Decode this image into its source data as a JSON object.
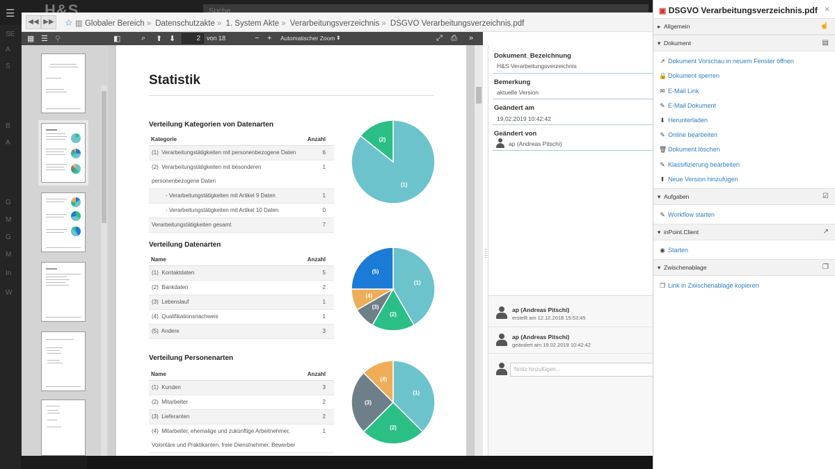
{
  "background": {
    "logo": "H&S",
    "search_placeholder": "Suche",
    "menu_icon": "☰",
    "side_labels": [
      "SE",
      "A",
      "S",
      "",
      "B",
      "A",
      "",
      "G",
      "M",
      "G",
      "M",
      "In",
      "W"
    ]
  },
  "viewer": {
    "breadcrumb": [
      "Globaler Bereich",
      "Datenschutzakte",
      "1. System Akte",
      "Verarbeitungsverzeichnis",
      "DSGVO Verarbeitungsverzeichnis.pdf"
    ],
    "toolbar": {
      "page_current": "2",
      "page_total_label": "von 18",
      "zoom_label": "Automatischer Zoom",
      "zoom_minus": "−",
      "zoom_plus": "+"
    }
  },
  "document": {
    "title": "Statistik",
    "sections": [
      {
        "heading": "Verteilung Kategorien von Datenarten",
        "col_name": "Kategorie",
        "col_count": "Anzahl",
        "rows": [
          {
            "idx": "(1)",
            "label": "Verarbeitungstätigkeiten mit personenbezogene Daten",
            "count": "6"
          },
          {
            "idx": "(2)",
            "label": "Verarbeitungstätigkeiten mit besonderen personenbezogene Daten",
            "count": "1"
          },
          {
            "idx": "",
            "label": "- Verarbeitungstätigkeiten mit Artikel 9 Daten",
            "count": "1"
          },
          {
            "idx": "",
            "label": "- Verarbeitungstätigkeiten mit Artikel 10 Daten",
            "count": "0"
          },
          {
            "idx": "",
            "label": "Verarbeitungstätigkeiten gesamt",
            "count": "7"
          }
        ]
      },
      {
        "heading": "Verteilung Datenarten",
        "col_name": "Name",
        "col_count": "Anzahl",
        "rows": [
          {
            "idx": "(1)",
            "label": "Kontaktdaten",
            "count": "5"
          },
          {
            "idx": "(2)",
            "label": "Bankdaten",
            "count": "2"
          },
          {
            "idx": "(3)",
            "label": "Lebenslauf",
            "count": "1"
          },
          {
            "idx": "(4)",
            "label": "Qualifikationsnachweis",
            "count": "1"
          },
          {
            "idx": "(5)",
            "label": "Andere",
            "count": "3"
          }
        ]
      },
      {
        "heading": "Verteilung Personenarten",
        "col_name": "Name",
        "col_count": "Anzahl",
        "rows": [
          {
            "idx": "(1)",
            "label": "Kunden",
            "count": "3"
          },
          {
            "idx": "(2)",
            "label": "Mitarbeiter",
            "count": "2"
          },
          {
            "idx": "(3)",
            "label": "Lieferanten",
            "count": "2"
          },
          {
            "idx": "(4)",
            "label": "Mitarbeiter, ehemalige und zukünftige Arbeitnehmer, Volontäre und Praktikanten, freie Dienstnehmer, Bewerber",
            "count": "1"
          }
        ]
      }
    ]
  },
  "chart_data": [
    {
      "type": "pie",
      "labels": [
        "(1)",
        "(2)"
      ],
      "values": [
        6,
        1
      ],
      "colors": [
        "#6cc3cc",
        "#2cbf85"
      ]
    },
    {
      "type": "pie",
      "labels": [
        "(1)",
        "(2)",
        "(3)",
        "(4)",
        "(5)"
      ],
      "values": [
        5,
        2,
        1,
        1,
        3
      ],
      "colors": [
        "#6cc3cc",
        "#2cbf85",
        "#6f7f8a",
        "#f0ad59",
        "#1b7bd6"
      ]
    },
    {
      "type": "pie",
      "labels": [
        "(1)",
        "(2)",
        "(3)",
        "(4)"
      ],
      "values": [
        3,
        2,
        2,
        1
      ],
      "colors": [
        "#6cc3cc",
        "#2cbf85",
        "#6f7f8a",
        "#f0ad59"
      ]
    }
  ],
  "metadata": {
    "fields": [
      {
        "label": "Dokument_Bezeichnung",
        "value": "H&S Verarbeitungsverzeichnis"
      },
      {
        "label": "Bemerkung",
        "value": "aktuelle Version"
      },
      {
        "label": "Geändert am",
        "value": "19.02.2019 10:42:42"
      },
      {
        "label": "Geändert von",
        "value": "ap (Andreas Pitschi)"
      }
    ],
    "history": [
      {
        "name": "ap (Andreas Pitschi)",
        "date": "erstellt am 12.12.2018 15:53:45"
      },
      {
        "name": "ap (Andreas Pitschi)",
        "date": "geändert am 19.02.2019 10:42:42"
      }
    ],
    "note_placeholder": "Notiz hinzufügen..."
  },
  "panel": {
    "title": "DSGVO Verarbeitungsverzeichnis.pdf",
    "close": "×",
    "sections": {
      "allgemein": "Allgemein",
      "dokument": "Dokument",
      "aufgaben": "Aufgaben",
      "inpoint": "inPoint.Client",
      "zwischenablage": "Zwischenablage"
    },
    "dokument_actions": [
      "Dokument Vorschau in neuem Fenster öffnen",
      "Dokument sperren",
      "E-Mail Link",
      "E-Mail Dokument",
      "Herunterladen",
      "Online bearbeiten",
      "Dokument löschen",
      "Klassifizierung bearbeiten",
      "Neue Version hinzufügen"
    ],
    "aufgaben_actions": [
      "Workflow starten"
    ],
    "inpoint_actions": [
      "Starten"
    ],
    "zwischenablage_actions": [
      "Link in Zwischenablage kopieren"
    ]
  }
}
